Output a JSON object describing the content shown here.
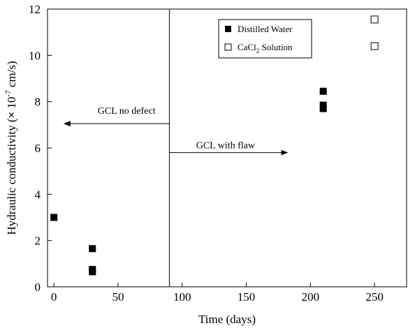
{
  "chart_data": {
    "type": "scatter",
    "title": "",
    "xlabel": "Time (days)",
    "ylabel_parts": [
      "Hydraulic conductivity (",
      "×",
      " 10",
      "-7",
      " cm/s)"
    ],
    "xlim": [
      -5,
      275
    ],
    "ylim": [
      0,
      12
    ],
    "xticks": [
      0,
      50,
      100,
      150,
      200,
      250
    ],
    "yticks": [
      0,
      2,
      4,
      6,
      8,
      10,
      12
    ],
    "grid": false,
    "legend_position": "top-center-right",
    "series": [
      {
        "name": "Distilled Water",
        "marker": "filled-square",
        "points": [
          {
            "x": 0,
            "y": 3.0
          },
          {
            "x": 30,
            "y": 1.65
          },
          {
            "x": 30,
            "y": 0.75
          },
          {
            "x": 30,
            "y": 0.65
          },
          {
            "x": 210,
            "y": 8.45
          },
          {
            "x": 210,
            "y": 7.85
          },
          {
            "x": 210,
            "y": 7.7
          }
        ]
      },
      {
        "name_parts": [
          "CaCl",
          "2",
          " Solution"
        ],
        "marker": "open-square",
        "points": [
          {
            "x": 250,
            "y": 11.55
          },
          {
            "x": 250,
            "y": 10.4
          }
        ]
      }
    ],
    "divider_x": 90,
    "annotations": [
      {
        "text": "GCL no defect",
        "direction": "left",
        "arrow_from_x": 90,
        "arrow_to_x": 8,
        "y": 7.05
      },
      {
        "text": "GCL with flaw",
        "direction": "right",
        "arrow_from_x": 90,
        "arrow_to_x": 182,
        "y": 5.8
      }
    ]
  },
  "colors": {
    "foreground": "#000000",
    "background": "#ffffff"
  }
}
